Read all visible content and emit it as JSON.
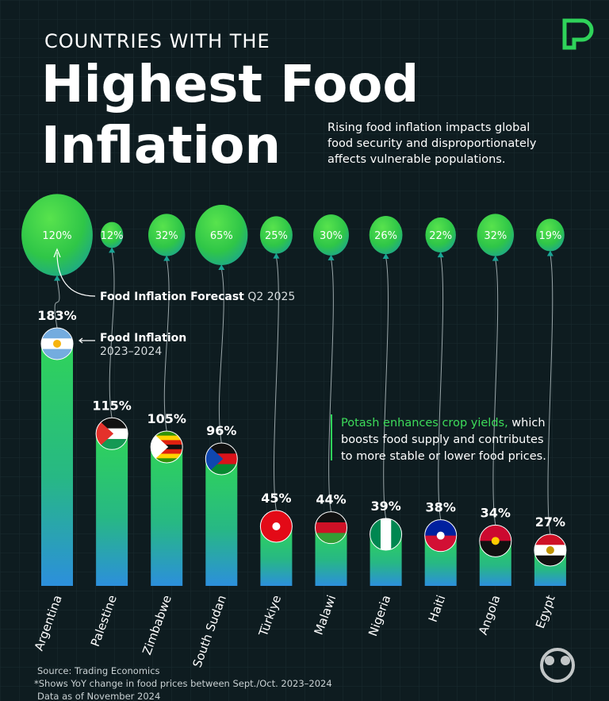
{
  "chart_data": {
    "type": "bar",
    "kicker": "COUNTRIES WITH THE",
    "title": [
      "Highest Food",
      "Inflation"
    ],
    "subtitle": [
      "Rising food inflation impacts global",
      "food security and disproportionately",
      "affects vulnerable populations."
    ],
    "categories": [
      "Argentina",
      "Palestine",
      "Zimbabwe",
      "South Sudan",
      "Türkiye",
      "Malawi",
      "Nigeria",
      "Haiti",
      "Angola",
      "Egypt"
    ],
    "series": [
      {
        "name": "Food Inflation",
        "period": "2023–2024",
        "color": "#2fd35a",
        "values": [
          183,
          115,
          105,
          96,
          45,
          44,
          39,
          38,
          34,
          27
        ],
        "value_labels": [
          "183%",
          "115%",
          "105%",
          "96%",
          "45%",
          "44%",
          "39%",
          "38%",
          "34%",
          "27%"
        ]
      },
      {
        "name": "Food Inflation Forecast",
        "period": "Q2 2025",
        "color": "#34d04a",
        "values": [
          120,
          12,
          32,
          65,
          25,
          30,
          26,
          22,
          32,
          19
        ],
        "value_labels": [
          "120%",
          "12%",
          "32%",
          "65%",
          "25%",
          "30%",
          "26%",
          "22%",
          "32%",
          "19%"
        ]
      }
    ],
    "note": {
      "highlight": "Potash enhances crop yields,",
      "lines": [
        " which",
        "boosts food supply and contributes",
        "to more stable or lower food prices."
      ]
    },
    "footer": [
      "Source: Trading Economics",
      "*Shows YoY change in food prices between Sept./Oct. 2023–2024",
      "Data as of November 2024"
    ]
  }
}
